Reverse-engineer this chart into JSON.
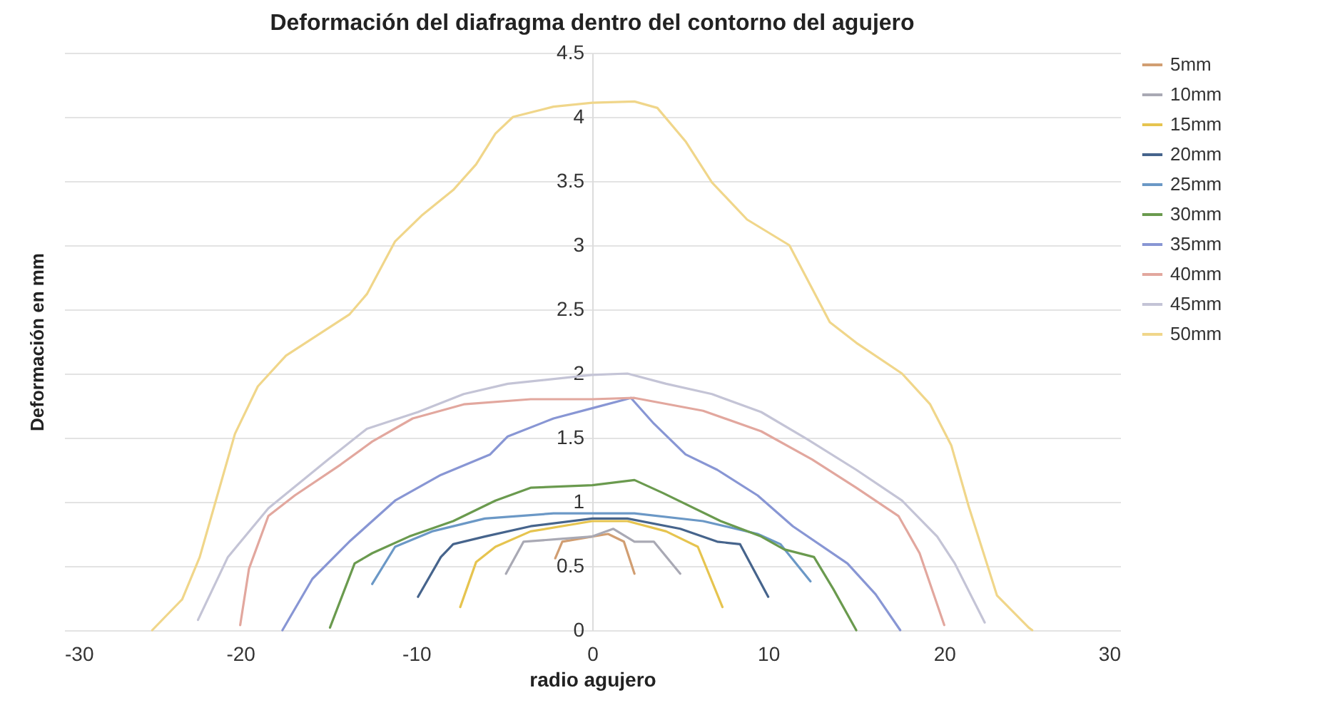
{
  "chart_data": {
    "type": "line",
    "title": "Deformación del  diafragma dentro del  contorno del agujero",
    "xlabel": "radio agujero",
    "ylabel": "Deformación en mm",
    "xlim": [
      -30,
      30
    ],
    "xticks": [
      -30,
      -20,
      -10,
      0,
      10,
      20,
      30
    ],
    "ylim": [
      0,
      4.5
    ],
    "yticks": [
      0,
      0.5,
      1,
      1.5,
      2,
      2.5,
      3,
      3.5,
      4,
      4.5
    ],
    "grid": "y",
    "legend": "right",
    "marker": "none",
    "line_style": "solid",
    "series": [
      {
        "name": "5mm",
        "color": "#d19e72",
        "x": [
          -2.1,
          -1.7,
          0,
          0.9,
          1.8,
          2.4
        ],
        "values": [
          0.56,
          0.69,
          0.73,
          0.75,
          0.69,
          0.44
        ]
      },
      {
        "name": "10mm",
        "color": "#a9a9b4",
        "x": [
          -4.9,
          -3.9,
          -1.9,
          0,
          1.2,
          2.4,
          3.5,
          5
        ],
        "values": [
          0.44,
          0.69,
          0.71,
          0.73,
          0.79,
          0.69,
          0.69,
          0.44
        ]
      },
      {
        "name": "15mm",
        "color": "#e6c44f",
        "x": [
          -7.5,
          -6.6,
          -5.5,
          -3.5,
          0,
          2,
          4.2,
          6,
          7.4
        ],
        "values": [
          0.18,
          0.53,
          0.65,
          0.77,
          0.85,
          0.85,
          0.77,
          0.65,
          0.18
        ]
      },
      {
        "name": "20mm",
        "color": "#46648c",
        "x": [
          -9.9,
          -8.6,
          -7.9,
          -6.1,
          -3.5,
          0,
          2,
          5,
          7.1,
          8.4,
          10
        ],
        "values": [
          0.26,
          0.57,
          0.67,
          0.73,
          0.81,
          0.87,
          0.87,
          0.79,
          0.69,
          0.67,
          0.26
        ]
      },
      {
        "name": "25mm",
        "color": "#6b98c6",
        "x": [
          -12.5,
          -11.2,
          -9.1,
          -6.1,
          -2.2,
          0,
          2.4,
          6.3,
          9.4,
          10.7,
          12.4
        ],
        "values": [
          0.36,
          0.65,
          0.77,
          0.87,
          0.91,
          0.91,
          0.91,
          0.85,
          0.75,
          0.67,
          0.38
        ]
      },
      {
        "name": "30mm",
        "color": "#6a9a4e",
        "x": [
          -14.9,
          -13.5,
          -12.5,
          -10.4,
          -7.9,
          -5.5,
          -3.5,
          0,
          2.4,
          4,
          7.3,
          9.6,
          10.9,
          12.6,
          13.7,
          15
        ],
        "values": [
          0.02,
          0.52,
          0.6,
          0.73,
          0.85,
          1.01,
          1.11,
          1.13,
          1.17,
          1.07,
          0.85,
          0.73,
          0.63,
          0.57,
          0.32,
          0
        ]
      },
      {
        "name": "35mm",
        "color": "#8896d4",
        "x": [
          -17.6,
          -15.9,
          -13.8,
          -11.2,
          -8.6,
          -5.8,
          -4.8,
          -2.2,
          0,
          2.2,
          3.5,
          5.3,
          7.1,
          9.4,
          11.4,
          14.5,
          16.1,
          17.5
        ],
        "values": [
          0,
          0.4,
          0.69,
          1.01,
          1.21,
          1.37,
          1.51,
          1.65,
          1.73,
          1.81,
          1.61,
          1.37,
          1.25,
          1.05,
          0.81,
          0.52,
          0.28,
          0
        ]
      },
      {
        "name": "40mm",
        "color": "#e2a79e",
        "x": [
          -20,
          -19.5,
          -18.4,
          -16.9,
          -14.3,
          -12.5,
          -10.2,
          -7.3,
          -3.5,
          0,
          2.4,
          6.3,
          9.6,
          12.5,
          15,
          17.4,
          18.6,
          20
        ],
        "values": [
          0.04,
          0.48,
          0.89,
          1.05,
          1.29,
          1.47,
          1.65,
          1.76,
          1.8,
          1.8,
          1.81,
          1.71,
          1.55,
          1.33,
          1.11,
          0.89,
          0.6,
          0.04
        ]
      },
      {
        "name": "45mm",
        "color": "#c4c4d6",
        "x": [
          -22.4,
          -20.7,
          -18.4,
          -15,
          -12.8,
          -9.9,
          -7.3,
          -4.8,
          0,
          2,
          4.2,
          6.8,
          9.6,
          12.2,
          15,
          17.6,
          19.6,
          20.6,
          22.3
        ],
        "values": [
          0.08,
          0.57,
          0.95,
          1.33,
          1.57,
          1.7,
          1.84,
          1.92,
          1.99,
          2,
          1.92,
          1.84,
          1.7,
          1.49,
          1.25,
          1.01,
          0.73,
          0.52,
          0.06
        ]
      },
      {
        "name": "50mm",
        "color": "#f0d68a",
        "x": [
          -25,
          -23.3,
          -22.3,
          -21.3,
          -20.3,
          -19,
          -17.4,
          -13.8,
          -12.8,
          -11.2,
          -9.7,
          -7.9,
          -6.6,
          -5.5,
          -4.5,
          -2.2,
          0,
          2.4,
          3.7,
          5.3,
          6.8,
          8.8,
          11.2,
          13.5,
          15,
          17.6,
          19.2,
          20.4,
          21.4,
          23,
          24.8,
          25
        ],
        "values": [
          0,
          0.24,
          0.57,
          1.05,
          1.53,
          1.9,
          2.14,
          2.46,
          2.62,
          3.03,
          3.23,
          3.43,
          3.63,
          3.87,
          4,
          4.08,
          4.11,
          4.12,
          4.07,
          3.81,
          3.49,
          3.2,
          3,
          2.4,
          2.24,
          2,
          1.76,
          1.44,
          0.96,
          0.27,
          0.02,
          0
        ]
      }
    ]
  }
}
